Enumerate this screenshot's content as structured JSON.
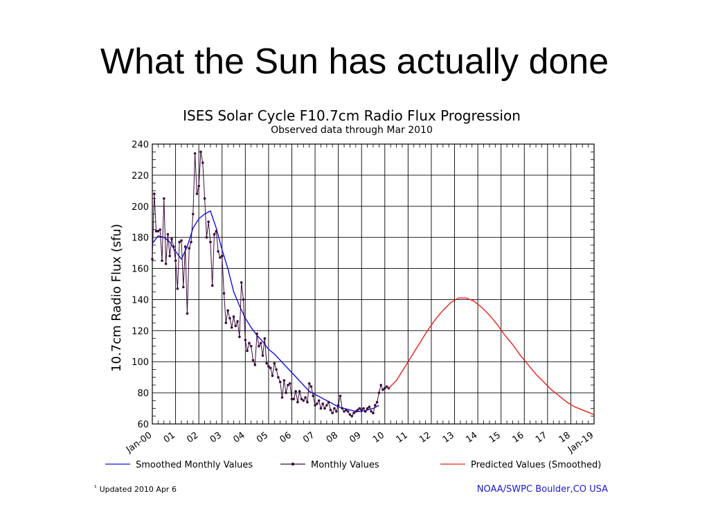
{
  "slide_title": "What the Sun has actually done",
  "chart_data": {
    "type": "line",
    "title": "ISES Solar Cycle F10.7cm Radio Flux Progression",
    "subtitle": "Observed data through Mar 2010",
    "ylabel": "10.7cm Radio Flux (sfu)",
    "xlabel": "",
    "ylim": [
      60,
      240
    ],
    "yticks": [
      60,
      80,
      100,
      120,
      140,
      160,
      180,
      200,
      220,
      240
    ],
    "xlim": [
      "2000-01",
      "2019-01"
    ],
    "xtick_labels": [
      "Jan-00",
      "01",
      "02",
      "03",
      "04",
      "05",
      "06",
      "07",
      "08",
      "09",
      "10",
      "11",
      "12",
      "13",
      "14",
      "15",
      "16",
      "17",
      "18",
      "Jan-19"
    ],
    "grid": true,
    "legend_position": "bottom",
    "series": [
      {
        "name": "Smoothed Monthly Values",
        "color": "#1010e0",
        "x": [
          "2000-01",
          "2000-04",
          "2000-07",
          "2000-10",
          "2001-01",
          "2001-04",
          "2001-07",
          "2001-10",
          "2002-01",
          "2002-04",
          "2002-07",
          "2002-10",
          "2003-01",
          "2003-04",
          "2003-07",
          "2003-10",
          "2004-01",
          "2004-04",
          "2004-07",
          "2004-10",
          "2005-01",
          "2005-04",
          "2005-07",
          "2005-10",
          "2006-01",
          "2006-04",
          "2006-07",
          "2006-10",
          "2007-01",
          "2007-04",
          "2007-07",
          "2007-10",
          "2008-01",
          "2008-04",
          "2008-07",
          "2008-10",
          "2009-01",
          "2009-04",
          "2009-07",
          "2009-10"
        ],
        "values": [
          176,
          181,
          180,
          177,
          171,
          166,
          174,
          186,
          192,
          195,
          197,
          186,
          172,
          160,
          145,
          136,
          128,
          122,
          117,
          113,
          108,
          105,
          101,
          97,
          93,
          89,
          85,
          81,
          79,
          77,
          75,
          73,
          71,
          70,
          69,
          68,
          68,
          69,
          70,
          72
        ]
      },
      {
        "name": "Monthly Values",
        "color": "#3b0a3b",
        "x": [
          "2000-01",
          "2000-02",
          "2000-03",
          "2000-04",
          "2000-05",
          "2000-06",
          "2000-07",
          "2000-08",
          "2000-09",
          "2000-10",
          "2000-11",
          "2000-12",
          "2001-01",
          "2001-02",
          "2001-03",
          "2001-04",
          "2001-05",
          "2001-06",
          "2001-07",
          "2001-08",
          "2001-09",
          "2001-10",
          "2001-11",
          "2001-12",
          "2002-01",
          "2002-02",
          "2002-03",
          "2002-04",
          "2002-05",
          "2002-06",
          "2002-07",
          "2002-08",
          "2002-09",
          "2002-10",
          "2002-11",
          "2002-12",
          "2003-01",
          "2003-02",
          "2003-03",
          "2003-04",
          "2003-05",
          "2003-06",
          "2003-07",
          "2003-08",
          "2003-09",
          "2003-10",
          "2003-11",
          "2003-12",
          "2004-01",
          "2004-02",
          "2004-03",
          "2004-04",
          "2004-05",
          "2004-06",
          "2004-07",
          "2004-08",
          "2004-09",
          "2004-10",
          "2004-11",
          "2004-12",
          "2005-01",
          "2005-02",
          "2005-03",
          "2005-04",
          "2005-05",
          "2005-06",
          "2005-07",
          "2005-08",
          "2005-09",
          "2005-10",
          "2005-11",
          "2005-12",
          "2006-01",
          "2006-02",
          "2006-03",
          "2006-04",
          "2006-05",
          "2006-06",
          "2006-07",
          "2006-08",
          "2006-09",
          "2006-10",
          "2006-11",
          "2006-12",
          "2007-01",
          "2007-02",
          "2007-03",
          "2007-04",
          "2007-05",
          "2007-06",
          "2007-07",
          "2007-08",
          "2007-09",
          "2007-10",
          "2007-11",
          "2007-12",
          "2008-01",
          "2008-02",
          "2008-03",
          "2008-04",
          "2008-05",
          "2008-06",
          "2008-07",
          "2008-08",
          "2008-09",
          "2008-10",
          "2008-11",
          "2008-12",
          "2009-01",
          "2009-02",
          "2009-03",
          "2009-04",
          "2009-05",
          "2009-06",
          "2009-07",
          "2009-08",
          "2009-09",
          "2009-10",
          "2009-11",
          "2009-12",
          "2010-01",
          "2010-02",
          "2010-03"
        ],
        "values": [
          166,
          208,
          184,
          184,
          185,
          165,
          205,
          163,
          182,
          168,
          179,
          174,
          165,
          147,
          177,
          178,
          148,
          174,
          131,
          173,
          177,
          195,
          234,
          208,
          213,
          235,
          228,
          205,
          180,
          190,
          177,
          149,
          182,
          184,
          171,
          167,
          168,
          144,
          125,
          133,
          128,
          122,
          129,
          123,
          126,
          116,
          151,
          140,
          114,
          107,
          112,
          110,
          101,
          98,
          118,
          110,
          112,
          104,
          115,
          99,
          97,
          96,
          91,
          99,
          95,
          90,
          87,
          77,
          88,
          80,
          85,
          86,
          76,
          76,
          81,
          74,
          81,
          76,
          75,
          77,
          74,
          86,
          84,
          78,
          72,
          73,
          75,
          70,
          73,
          70,
          72,
          74,
          69,
          67,
          70,
          68,
          72,
          78,
          70,
          68,
          69,
          68,
          66,
          65,
          67,
          68,
          69,
          70,
          69,
          70,
          68,
          70,
          71,
          68,
          67,
          72,
          74,
          80,
          85,
          82,
          83,
          84,
          83
        ]
      },
      {
        "name": "Predicted Values (Smoothed)",
        "color": "#e8201a",
        "x": [
          "2010-03",
          "2010-07",
          "2010-11",
          "2011-03",
          "2011-07",
          "2011-11",
          "2012-03",
          "2012-07",
          "2012-11",
          "2013-03",
          "2013-07",
          "2013-11",
          "2014-03",
          "2014-07",
          "2014-11",
          "2015-03",
          "2015-07",
          "2015-11",
          "2016-03",
          "2016-07",
          "2016-11",
          "2017-03",
          "2017-07",
          "2017-11",
          "2018-03",
          "2018-07",
          "2018-11",
          "2019-01"
        ],
        "values": [
          83,
          88,
          96,
          104,
          112,
          120,
          127,
          133,
          138,
          141,
          141,
          139,
          135,
          130,
          124,
          117,
          111,
          104,
          98,
          92,
          87,
          82,
          78,
          74,
          71,
          69,
          67,
          66
        ]
      }
    ]
  },
  "legend": [
    {
      "label": "Smoothed Monthly Values",
      "color": "#1010e0",
      "marker": false
    },
    {
      "label": "Monthly Values",
      "color": "#3b0a3b",
      "marker": true
    },
    {
      "label": "Predicted Values (Smoothed)",
      "color": "#e8201a",
      "marker": false
    }
  ],
  "footer": {
    "updated_mark": "¹",
    "updated": "Updated 2010 Apr  6",
    "source_prefix": "NOAA/SWPC Boulder",
    "source_suffix": ",CO USA",
    "source_color": "#1a1ad0"
  }
}
